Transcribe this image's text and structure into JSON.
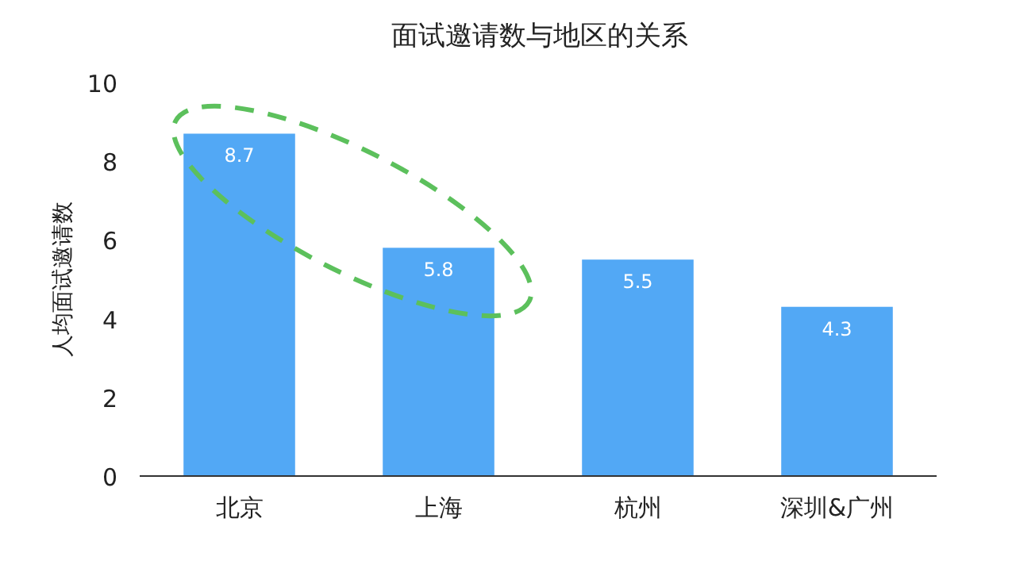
{
  "chart_data": {
    "type": "bar",
    "title": "面试邀请数与地区的关系",
    "ylabel": "人均面试邀请数",
    "categories": [
      "北京",
      "上海",
      "杭州",
      "深圳&广州"
    ],
    "values": [
      8.7,
      5.8,
      5.5,
      4.3
    ],
    "color": "#52a8f5",
    "ylim": [
      0,
      10
    ],
    "yticks": [
      0,
      2,
      4,
      6,
      8,
      10
    ],
    "data_labels": true
  }
}
